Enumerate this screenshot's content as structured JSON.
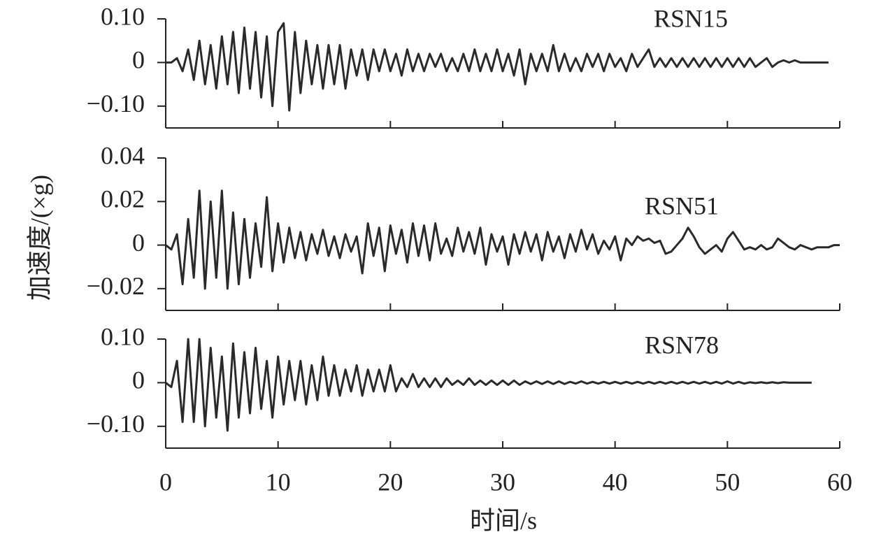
{
  "chart_data": [
    {
      "type": "line",
      "ylabel": "加速度/(×g)",
      "x": [
        0,
        0.5,
        1,
        1.5,
        2,
        2.5,
        3,
        3.5,
        4,
        4.5,
        5,
        5.5,
        6,
        6.5,
        7,
        7.5,
        8,
        8.5,
        9,
        9.5,
        10,
        10.5,
        11,
        11.5,
        12,
        12.5,
        13,
        13.5,
        14,
        14.5,
        15,
        15.5,
        16,
        16.5,
        17,
        17.5,
        18,
        18.5,
        19,
        19.5,
        20,
        20.5,
        21,
        21.5,
        22,
        22.5,
        23,
        23.5,
        24,
        24.5,
        25,
        25.5,
        26,
        26.5,
        27,
        27.5,
        28,
        28.5,
        29,
        29.5,
        30,
        30.5,
        31,
        31.5,
        32,
        32.5,
        33,
        33.5,
        34,
        34.5,
        35,
        35.5,
        36,
        36.5,
        37,
        37.5,
        38,
        38.5,
        39,
        39.5,
        40,
        40.5,
        41,
        41.5,
        42,
        42.5,
        43,
        43.5,
        44,
        44.5,
        45,
        45.5,
        46,
        46.5,
        47,
        47.5,
        48,
        48.5,
        49,
        49.5,
        50,
        50.5,
        51,
        51.5,
        52,
        52.5,
        53,
        53.5,
        54,
        54.5,
        55,
        55.5,
        56,
        56.5,
        57,
        57.5,
        58,
        58.5,
        59
      ],
      "series": [
        {
          "name": "RSN15",
          "color": "#2a2a2a",
          "values": [
            0,
            0,
            0.01,
            -0.02,
            0.03,
            -0.04,
            0.05,
            -0.05,
            0.04,
            -0.06,
            0.06,
            -0.05,
            0.07,
            -0.07,
            0.08,
            -0.06,
            0.07,
            -0.08,
            0.06,
            -0.1,
            0.07,
            0.09,
            -0.11,
            0.07,
            -0.07,
            0.05,
            -0.05,
            0.04,
            -0.06,
            0.04,
            -0.05,
            0.04,
            -0.06,
            0.03,
            -0.03,
            0.03,
            -0.04,
            0.03,
            -0.02,
            0.03,
            -0.02,
            0.02,
            -0.03,
            0.03,
            -0.02,
            0.02,
            -0.02,
            0.02,
            -0.01,
            0.02,
            -0.02,
            0.01,
            -0.02,
            0.02,
            -0.02,
            0.03,
            -0.02,
            0.02,
            -0.02,
            0.03,
            -0.02,
            0.02,
            -0.03,
            0.03,
            -0.05,
            0.02,
            -0.02,
            0.02,
            -0.02,
            0.04,
            -0.02,
            0.02,
            -0.02,
            0.01,
            -0.02,
            0.02,
            -0.01,
            0.02,
            -0.02,
            0.02,
            -0.01,
            0.01,
            -0.02,
            0.02,
            -0.01,
            0.01,
            0.03,
            -0.01,
            0.01,
            -0.01,
            0.01,
            -0.01,
            0.01,
            -0.01,
            0.01,
            -0.01,
            0.01,
            -0.01,
            0.01,
            -0.01,
            0.01,
            -0.01,
            0.01,
            -0.01,
            0.01,
            -0.01,
            0,
            0.01,
            -0.01,
            0,
            0.005,
            0,
            0.005,
            0,
            0,
            0,
            0,
            0,
            0
          ]
        }
      ],
      "xlim": [
        0,
        60
      ],
      "xticks": [
        0,
        10,
        20,
        30,
        40,
        50,
        60
      ],
      "ylim": [
        -0.15,
        0.1
      ],
      "yticks": [
        {
          "value": 0.1,
          "label": "0.10"
        },
        0,
        {
          "value": -0.1,
          "label": "−0.10"
        }
      ]
    },
    {
      "type": "line",
      "x": [
        0,
        0.5,
        1,
        1.5,
        2,
        2.5,
        3,
        3.5,
        4,
        4.5,
        5,
        5.5,
        6,
        6.5,
        7,
        7.5,
        8,
        8.5,
        9,
        9.5,
        10,
        10.5,
        11,
        11.5,
        12,
        12.5,
        13,
        13.5,
        14,
        14.5,
        15,
        15.5,
        16,
        16.5,
        17,
        17.5,
        18,
        18.5,
        19,
        19.5,
        20,
        20.5,
        21,
        21.5,
        22,
        22.5,
        23,
        23.5,
        24,
        24.5,
        25,
        25.5,
        26,
        26.5,
        27,
        27.5,
        28,
        28.5,
        29,
        29.5,
        30,
        30.5,
        31,
        31.5,
        32,
        32.5,
        33,
        33.5,
        34,
        34.5,
        35,
        35.5,
        36,
        36.5,
        37,
        37.5,
        38,
        38.5,
        39,
        39.5,
        40,
        40.5,
        41,
        41.5,
        42,
        42.5,
        43,
        43.5,
        44,
        44.5,
        45,
        45.5,
        46,
        46.5,
        47,
        47.5,
        48,
        48.5,
        49,
        49.5,
        50,
        50.5,
        51,
        51.5,
        52,
        52.5,
        53,
        53.5,
        54,
        54.5,
        55,
        55.5,
        56,
        56.5,
        57,
        57.5,
        58,
        58.5,
        59,
        59.5,
        60
      ],
      "series": [
        {
          "name": "RSN51",
          "color": "#2a2a2a",
          "values": [
            0,
            -0.002,
            0.005,
            -0.018,
            0.012,
            -0.015,
            0.025,
            -0.02,
            0.02,
            -0.015,
            0.025,
            -0.02,
            0.015,
            -0.018,
            0.012,
            -0.015,
            0.01,
            -0.01,
            0.022,
            -0.012,
            0.01,
            -0.008,
            0.008,
            -0.006,
            0.006,
            -0.007,
            0.005,
            -0.004,
            0.007,
            -0.005,
            0.004,
            -0.006,
            0.005,
            -0.003,
            0.004,
            -0.013,
            0.01,
            -0.005,
            0.008,
            -0.012,
            0.009,
            -0.004,
            0.007,
            -0.008,
            0.01,
            -0.005,
            0.009,
            -0.007,
            0.01,
            -0.004,
            0.003,
            -0.005,
            0.008,
            -0.003,
            0.006,
            -0.004,
            0.008,
            -0.009,
            0.005,
            -0.003,
            0.004,
            -0.009,
            0.005,
            -0.004,
            0.006,
            -0.003,
            0.005,
            -0.007,
            0.006,
            -0.003,
            0.004,
            -0.006,
            0.005,
            -0.003,
            0.007,
            -0.002,
            0.005,
            -0.004,
            0.002,
            -0.002,
            0.004,
            -0.007,
            0.003,
            0,
            0.004,
            0.002,
            0.003,
            0.001,
            0.002,
            -0.004,
            -0.003,
            0,
            0.003,
            0.008,
            0.004,
            -0.001,
            -0.004,
            -0.002,
            0,
            -0.003,
            0.003,
            0.006,
            0.002,
            -0.002,
            -0.001,
            -0.002,
            0,
            -0.002,
            -0.001,
            0.003,
            0.001,
            -0.001,
            -0.002,
            0,
            -0.001,
            -0.002,
            -0.001,
            -0.001,
            -0.001,
            0,
            0
          ]
        }
      ],
      "xlim": [
        0,
        60
      ],
      "xticks": [
        0,
        10,
        20,
        30,
        40,
        50,
        60
      ],
      "ylim": [
        -0.03,
        0.04
      ],
      "yticks": [
        0.04,
        0.02,
        0,
        {
          "value": -0.02,
          "label": "−0.02"
        }
      ]
    },
    {
      "type": "line",
      "xlabel": "时间/s",
      "x": [
        0,
        0.5,
        1,
        1.5,
        2,
        2.5,
        3,
        3.5,
        4,
        4.5,
        5,
        5.5,
        6,
        6.5,
        7,
        7.5,
        8,
        8.5,
        9,
        9.5,
        10,
        10.5,
        11,
        11.5,
        12,
        12.5,
        13,
        13.5,
        14,
        14.5,
        15,
        15.5,
        16,
        16.5,
        17,
        17.5,
        18,
        18.5,
        19,
        19.5,
        20,
        20.5,
        21,
        21.5,
        22,
        22.5,
        23,
        23.5,
        24,
        24.5,
        25,
        25.5,
        26,
        26.5,
        27,
        27.5,
        28,
        28.5,
        29,
        29.5,
        30,
        30.5,
        31,
        31.5,
        32,
        32.5,
        33,
        33.5,
        34,
        34.5,
        35,
        35.5,
        36,
        36.5,
        37,
        37.5,
        38,
        38.5,
        39,
        39.5,
        40,
        40.5,
        41,
        41.5,
        42,
        42.5,
        43,
        43.5,
        44,
        44.5,
        45,
        45.5,
        46,
        46.5,
        47,
        47.5,
        48,
        48.5,
        49,
        49.5,
        50,
        50.5,
        51,
        51.5,
        52,
        52.5,
        53,
        53.5,
        54,
        54.5,
        55,
        55.5,
        56,
        56.5,
        57,
        57.5
      ],
      "series": [
        {
          "name": "RSN78",
          "color": "#2a2a2a",
          "values": [
            0,
            -0.01,
            0.05,
            -0.09,
            0.1,
            -0.09,
            0.1,
            -0.1,
            0.08,
            -0.08,
            0.06,
            -0.11,
            0.09,
            -0.08,
            0.07,
            -0.07,
            0.08,
            -0.06,
            0.05,
            -0.08,
            0.06,
            -0.05,
            0.05,
            -0.04,
            0.05,
            -0.05,
            0.04,
            -0.04,
            0.06,
            -0.03,
            0.04,
            -0.03,
            0.03,
            -0.02,
            0.04,
            -0.03,
            0.03,
            -0.02,
            0.03,
            -0.02,
            0.04,
            -0.02,
            0.01,
            -0.01,
            0.02,
            -0.01,
            0.01,
            -0.01,
            0.01,
            -0.01,
            0.01,
            -0.005,
            0.005,
            -0.005,
            0.01,
            -0.005,
            0.005,
            -0.005,
            0.005,
            -0.005,
            0.005,
            -0.005,
            0.005,
            -0.005,
            0.003,
            -0.003,
            0.003,
            -0.003,
            0.003,
            -0.003,
            0.003,
            -0.003,
            0.002,
            -0.002,
            0.003,
            -0.002,
            0.002,
            -0.002,
            0.002,
            -0.002,
            0.002,
            -0.002,
            0.002,
            -0.002,
            0.002,
            -0.002,
            0.002,
            -0.002,
            0.002,
            -0.002,
            0.002,
            -0.002,
            0.002,
            -0.002,
            0.002,
            -0.002,
            0.002,
            -0.002,
            0.002,
            -0.002,
            0.003,
            -0.002,
            0.002,
            -0.002,
            0.001,
            -0.001,
            0.001,
            -0.001,
            0.001,
            -0.001,
            0.001,
            0,
            0,
            0,
            0,
            0
          ]
        }
      ],
      "xlim": [
        0,
        60
      ],
      "xticks": [
        0,
        10,
        20,
        30,
        40,
        50,
        60
      ],
      "ylim": [
        -0.15,
        0.1
      ],
      "yticks": [
        {
          "value": 0.1,
          "label": "0.10"
        },
        0,
        {
          "value": -0.1,
          "label": "−0.10"
        }
      ]
    }
  ]
}
